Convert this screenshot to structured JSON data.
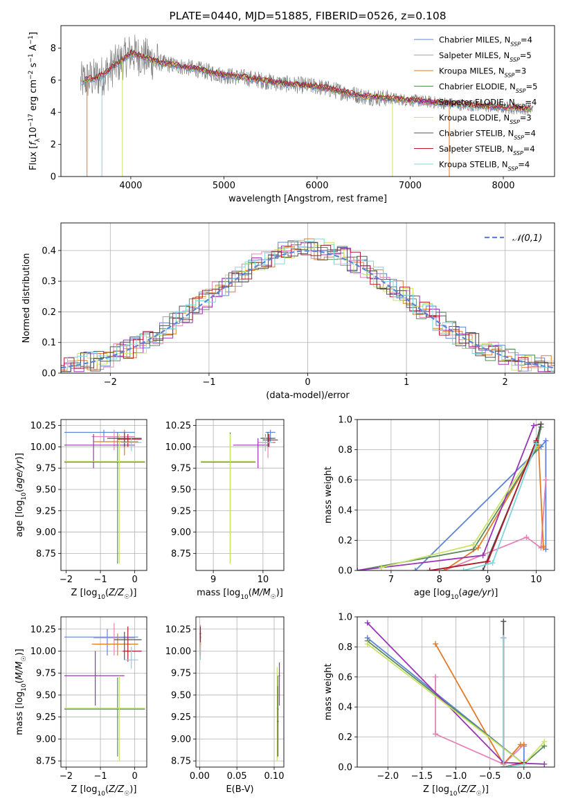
{
  "colors": {
    "c1": "#5b84d6",
    "c2": "#e583b8",
    "c3": "#e07b24",
    "c4": "#5a8c5a",
    "c5": "#9a33b5",
    "c6": "#c9e366",
    "c7": "#505050",
    "c8": "#b0182a",
    "c9": "#7dd6df",
    "grid": "#b0b0b0",
    "data_gray": "#808080"
  },
  "chart_data": [
    {
      "id": "spectrum",
      "type": "line",
      "title": "PLATE=0440, MJD=51885, FIBERID=0526, z=0.108",
      "xlabel": "wavelength [Angstrom, rest frame]",
      "ylabel": "Flux [f_λ10^-17 erg cm^-2 s^-1 A^-1]",
      "xlim": [
        3250,
        8550
      ],
      "ylim": [
        0,
        9.4
      ],
      "xticks": [
        4000,
        5000,
        6000,
        7000,
        8000
      ],
      "yticks": [
        0,
        2,
        4,
        6,
        8
      ],
      "grid": false,
      "legend_position": "top-right",
      "legend": [
        {
          "main": "Chabrier MILES, N",
          "sub": "SSP",
          "tail": "=4",
          "color": "c1"
        },
        {
          "main": "Salpeter MILES, N",
          "sub": "SSP",
          "tail": "=5",
          "color": "c2"
        },
        {
          "main": "Kroupa MILES, N",
          "sub": "SSP",
          "tail": "=3",
          "color": "c3"
        },
        {
          "main": "Chabrier ELODIE, N",
          "sub": "SSP",
          "tail": "=5",
          "color": "c4"
        },
        {
          "main": "Salpeter ELODIE, N",
          "sub": "SSP",
          "tail": "=4",
          "color": "c5"
        },
        {
          "main": "Kroupa ELODIE, N",
          "sub": "SSP",
          "tail": "=3",
          "color": "c6"
        },
        {
          "main": "Chabrier STELIB, N",
          "sub": "SSP",
          "tail": "=4",
          "color": "c7"
        },
        {
          "main": "Salpeter STELIB, N",
          "sub": "SSP",
          "tail": "=4",
          "color": "c8"
        },
        {
          "main": "Kroupa STELIB, N",
          "sub": "SSP",
          "tail": "=4",
          "color": "c9"
        }
      ],
      "continuum": {
        "x": [
          3450,
          3500,
          3600,
          3700,
          3800,
          3900,
          4000,
          4100,
          4200,
          4300,
          4500,
          4700,
          5000,
          5300,
          5600,
          6000,
          6500,
          7000,
          7500,
          8000,
          8300
        ],
        "y": [
          5.8,
          6.0,
          6.1,
          6.3,
          6.8,
          7.2,
          7.7,
          7.5,
          7.3,
          7.1,
          6.9,
          6.7,
          6.3,
          6.1,
          5.8,
          5.6,
          5.0,
          4.75,
          4.5,
          4.3,
          4.2
        ]
      }
    },
    {
      "id": "residuals",
      "type": "histogram",
      "xlabel": "(data-model)/error",
      "ylabel": "Normed distribution",
      "xlim": [
        -2.5,
        2.5
      ],
      "ylim": [
        0,
        0.49
      ],
      "xticks": [
        -2,
        -1,
        0,
        1,
        2
      ],
      "yticks": [
        0.0,
        0.1,
        0.2,
        0.3,
        0.4
      ],
      "grid": true,
      "legend_position": "top-right",
      "legend": [
        {
          "label": "𝒩(0,1)",
          "style": "dashed",
          "color": "c1"
        }
      ],
      "bin_width": 0.1
    },
    {
      "id": "age_vs_z",
      "type": "errorbar",
      "xlabel": "Z [log10(Z/Z☉)]",
      "ylabel": "age [log10(age/yr)]",
      "xlim": [
        -2.15,
        0.35
      ],
      "ylim": [
        8.55,
        10.32
      ],
      "xticks": [
        -2,
        -1,
        0
      ],
      "yticks": [
        8.75,
        9.0,
        9.25,
        9.5,
        9.75,
        10.0,
        10.25
      ],
      "grid": true,
      "points": [
        {
          "s": "c1",
          "x": -0.9,
          "xl": -2.05,
          "xh": 0.0,
          "y": 10.17,
          "yl": 10.06,
          "yh": 10.2
        },
        {
          "s": "c2",
          "x": -0.6,
          "xl": -1.25,
          "xh": 0.0,
          "y": 10.12,
          "yl": 9.96,
          "yh": 10.2
        },
        {
          "s": "c3",
          "x": -0.3,
          "xl": -1.2,
          "xh": 0.1,
          "y": 10.06,
          "yl": 9.9,
          "yh": 10.2
        },
        {
          "s": "c4",
          "x": -0.5,
          "xl": -2.05,
          "xh": 0.3,
          "y": 9.82,
          "yl": 8.63,
          "yh": 10.17
        },
        {
          "s": "c5",
          "x": -1.2,
          "xl": -2.05,
          "xh": 0.0,
          "y": 10.02,
          "yl": 9.75,
          "yh": 10.15
        },
        {
          "s": "c6",
          "x": -0.45,
          "xl": -2.05,
          "xh": 0.3,
          "y": 9.83,
          "yl": 8.63,
          "yh": 10.15
        },
        {
          "s": "c7",
          "x": -0.3,
          "xl": -0.8,
          "xh": 0.2,
          "y": 10.1,
          "yl": 10.0,
          "yh": 10.17
        },
        {
          "s": "c8",
          "x": -0.2,
          "xl": -0.5,
          "xh": 0.2,
          "y": 10.09,
          "yl": 10.0,
          "yh": 10.15
        },
        {
          "s": "c9",
          "x": -0.1,
          "xl": -0.4,
          "xh": 0.2,
          "y": 10.05,
          "yl": 9.95,
          "yh": 10.12
        }
      ]
    },
    {
      "id": "age_vs_mass",
      "type": "errorbar",
      "xlabel": "mass [log10(M/M☉)]",
      "ylabel": "",
      "xlim": [
        8.65,
        10.42
      ],
      "ylim": [
        8.55,
        10.32
      ],
      "xticks": [
        9,
        10
      ],
      "yticks": [
        8.75,
        9.0,
        9.25,
        9.5,
        9.75,
        10.0,
        10.25
      ],
      "grid": true,
      "points": [
        {
          "s": "c1",
          "x": 10.15,
          "xl": 10.05,
          "xh": 10.25,
          "y": 10.17,
          "yl": 10.06,
          "yh": 10.2
        },
        {
          "s": "c2",
          "x": 10.1,
          "xl": 9.9,
          "xh": 10.25,
          "y": 10.05,
          "yl": 9.87,
          "yh": 10.15
        },
        {
          "s": "c3",
          "x": 10.05,
          "xl": 9.95,
          "xh": 10.25,
          "y": 10.05,
          "yl": 9.95,
          "yh": 10.15
        },
        {
          "s": "c4",
          "x": 9.34,
          "xl": 8.75,
          "xh": 9.85,
          "y": 9.82,
          "yl": 8.63,
          "yh": 10.17
        },
        {
          "s": "c5",
          "x": 9.9,
          "xl": 9.4,
          "xh": 10.1,
          "y": 10.02,
          "yl": 9.75,
          "yh": 10.1
        },
        {
          "s": "c6",
          "x": 9.34,
          "xl": 8.75,
          "xh": 9.85,
          "y": 9.83,
          "yl": 8.63,
          "yh": 10.15
        },
        {
          "s": "c7",
          "x": 10.1,
          "xl": 9.95,
          "xh": 10.25,
          "y": 10.1,
          "yl": 10.0,
          "yh": 10.17
        },
        {
          "s": "c8",
          "x": 10.12,
          "xl": 10.0,
          "xh": 10.3,
          "y": 10.08,
          "yl": 10.0,
          "yh": 10.15
        },
        {
          "s": "c9",
          "x": 10.05,
          "xl": 9.95,
          "xh": 10.2,
          "y": 10.05,
          "yl": 9.95,
          "yh": 10.12
        }
      ]
    },
    {
      "id": "weight_vs_age",
      "type": "line",
      "xlabel": "age [log10(age/yr)]",
      "ylabel": "mass weight",
      "xlim": [
        6.3,
        10.38
      ],
      "ylim": [
        0,
        1.0
      ],
      "xticks": [
        7,
        8,
        9,
        10
      ],
      "yticks": [
        0.0,
        0.2,
        0.4,
        0.6,
        0.8,
        1.0
      ],
      "grid": true,
      "series": [
        {
          "s": "c1",
          "x": [
            7.5,
            10.1,
            10.2,
            10.2
          ],
          "y": [
            0.0,
            0.82,
            0.86,
            0.14
          ]
        },
        {
          "s": "c2",
          "x": [
            8.1,
            9.8,
            10.1,
            10.2,
            10.2
          ],
          "y": [
            0.0,
            0.22,
            0.15,
            0.6,
            0.6
          ]
        },
        {
          "s": "c3",
          "x": [
            8.1,
            8.8,
            10.05,
            10.15,
            10.15
          ],
          "y": [
            0.0,
            0.15,
            0.83,
            0.15,
            0.16
          ]
        },
        {
          "s": "c4",
          "x": [
            6.3,
            8.7,
            10.0,
            10.1
          ],
          "y": [
            0.0,
            0.14,
            0.8,
            0.95
          ]
        },
        {
          "s": "c5",
          "x": [
            6.3,
            8.9,
            9.95,
            10.1
          ],
          "y": [
            0.0,
            0.1,
            0.96,
            0.97
          ]
        },
        {
          "s": "c6",
          "x": [
            6.8,
            8.7,
            10.0
          ],
          "y": [
            0.02,
            0.17,
            0.82
          ]
        },
        {
          "s": "c7",
          "x": [
            8.9,
            10.0,
            10.1
          ],
          "y": [
            0.0,
            0.85,
            0.97
          ]
        },
        {
          "s": "c8",
          "x": [
            7.8,
            9.0,
            10.0
          ],
          "y": [
            0.0,
            0.06,
            0.86
          ]
        },
        {
          "s": "c9",
          "x": [
            8.5,
            9.1,
            10.0
          ],
          "y": [
            0.0,
            0.05,
            0.84
          ]
        }
      ]
    },
    {
      "id": "mass_vs_z",
      "type": "errorbar",
      "xlabel": "Z [log10(Z/Z☉)]",
      "ylabel": "mass [log10(M/M☉)]",
      "xlim": [
        -2.15,
        0.35
      ],
      "ylim": [
        8.68,
        10.39
      ],
      "xticks": [
        -2,
        -1,
        0
      ],
      "yticks": [
        8.75,
        9.0,
        9.25,
        9.5,
        9.75,
        10.0,
        10.25
      ],
      "grid": true,
      "points": [
        {
          "s": "c1",
          "x": -0.8,
          "xl": -2.05,
          "xh": 0.1,
          "y": 10.16,
          "yl": 9.95,
          "yh": 10.25
        },
        {
          "s": "c2",
          "x": -0.6,
          "xl": -1.2,
          "xh": 0.0,
          "y": 10.15,
          "yl": 9.95,
          "yh": 10.32
        },
        {
          "s": "c3",
          "x": -0.5,
          "xl": -1.25,
          "xh": 0.1,
          "y": 10.08,
          "yl": 9.95,
          "yh": 10.2
        },
        {
          "s": "c4",
          "x": -0.5,
          "xl": -2.05,
          "xh": 0.3,
          "y": 9.34,
          "yl": 8.8,
          "yh": 9.7
        },
        {
          "s": "c5",
          "x": -1.15,
          "xl": -2.05,
          "xh": -0.3,
          "y": 9.72,
          "yl": 9.38,
          "yh": 10.0
        },
        {
          "s": "c6",
          "x": -0.45,
          "xl": -2.05,
          "xh": 0.3,
          "y": 9.35,
          "yl": 8.75,
          "yh": 9.72
        },
        {
          "s": "c7",
          "x": -0.3,
          "xl": -0.6,
          "xh": 0.2,
          "y": 10.13,
          "yl": 9.9,
          "yh": 10.22
        },
        {
          "s": "c8",
          "x": -0.2,
          "xl": -0.35,
          "xh": 0.2,
          "y": 10.0,
          "yl": 9.88,
          "yh": 10.28
        },
        {
          "s": "c9",
          "x": -0.1,
          "xl": -0.3,
          "xh": 0.1,
          "y": 9.9,
          "yl": 9.8,
          "yh": 10.05
        }
      ]
    },
    {
      "id": "mass_vs_ebv",
      "type": "errorbar",
      "xlabel": "E(B-V)",
      "ylabel": "",
      "xlim": [
        -0.005,
        0.113
      ],
      "ylim": [
        8.68,
        10.39
      ],
      "xticks": [
        0.0,
        0.05,
        0.1
      ],
      "yticks": [
        8.75,
        9.0,
        9.25,
        9.5,
        9.75,
        10.0,
        10.25
      ],
      "grid": true,
      "points": [
        {
          "s": "c1",
          "x": 0.001,
          "xl": 0.0,
          "xh": 0.002,
          "y": 10.16,
          "yl": 9.95,
          "yh": 10.25
        },
        {
          "s": "c2",
          "x": 0.001,
          "xl": 0.0,
          "xh": 0.002,
          "y": 10.15,
          "yl": 9.95,
          "yh": 10.3
        },
        {
          "s": "c3",
          "x": 0.001,
          "xl": 0.0,
          "xh": 0.002,
          "y": 10.08,
          "yl": 9.95,
          "yh": 10.2
        },
        {
          "s": "c4",
          "x": 0.105,
          "xl": 0.104,
          "xh": 0.106,
          "y": 9.34,
          "yl": 8.82,
          "yh": 9.72
        },
        {
          "s": "c5",
          "x": 0.107,
          "xl": 0.106,
          "xh": 0.108,
          "y": 9.72,
          "yl": 9.38,
          "yh": 9.87
        },
        {
          "s": "c6",
          "x": 0.104,
          "xl": 0.103,
          "xh": 0.105,
          "y": 9.35,
          "yl": 8.75,
          "yh": 9.82
        },
        {
          "s": "c7",
          "x": 0.105,
          "xl": 0.104,
          "xh": 0.106,
          "y": 9.2,
          "yl": 8.8,
          "yh": 9.6
        },
        {
          "s": "c8",
          "x": 0.001,
          "xl": 0.0,
          "xh": 0.002,
          "y": 10.2,
          "yl": 10.05,
          "yh": 10.28
        },
        {
          "s": "c9",
          "x": 0.001,
          "xl": 0.0,
          "xh": 0.002,
          "y": 10.0,
          "yl": 9.9,
          "yh": 10.1
        }
      ]
    },
    {
      "id": "weight_vs_z",
      "type": "line",
      "xlabel": "Z [log10(Z/Z☉)]",
      "ylabel": "mass weight",
      "xlim": [
        -2.45,
        0.45
      ],
      "ylim": [
        0,
        1.0
      ],
      "xticks": [
        -2.0,
        -1.5,
        -1.0,
        -0.5,
        0.0
      ],
      "yticks": [
        0.0,
        0.2,
        0.4,
        0.6,
        0.8,
        1.0
      ],
      "grid": true,
      "series": [
        {
          "s": "c1",
          "x": [
            -2.3,
            0.0,
            0.0
          ],
          "y": [
            0.86,
            0.02,
            0.14
          ]
        },
        {
          "s": "c2",
          "x": [
            -1.3,
            -1.3,
            -1.3,
            -0.3,
            0.0
          ],
          "y": [
            0.6,
            0.6,
            0.22,
            0.02,
            0.15
          ]
        },
        {
          "s": "c3",
          "x": [
            -1.3,
            -0.3,
            -0.05,
            0.0
          ],
          "y": [
            0.82,
            0.02,
            0.15,
            0.15
          ]
        },
        {
          "s": "c4",
          "x": [
            -2.3,
            0.0,
            0.3
          ],
          "y": [
            0.84,
            0.02,
            0.14
          ]
        },
        {
          "s": "c5",
          "x": [
            -2.3,
            -0.3,
            0.3
          ],
          "y": [
            0.96,
            0.03,
            0.02
          ]
        },
        {
          "s": "c6",
          "x": [
            -2.3,
            0.0,
            0.3
          ],
          "y": [
            0.82,
            0.02,
            0.17
          ]
        },
        {
          "s": "c7",
          "x": [
            -0.3,
            -0.3,
            0.0
          ],
          "y": [
            0.97,
            0.0,
            0.02
          ]
        },
        {
          "s": "c8",
          "x": [
            -0.3,
            -0.3,
            0.0
          ],
          "y": [
            0.86,
            0.0,
            0.03
          ]
        },
        {
          "s": "c9",
          "x": [
            -0.3,
            -0.3,
            0.0
          ],
          "y": [
            0.86,
            0.0,
            0.02
          ]
        }
      ]
    }
  ]
}
